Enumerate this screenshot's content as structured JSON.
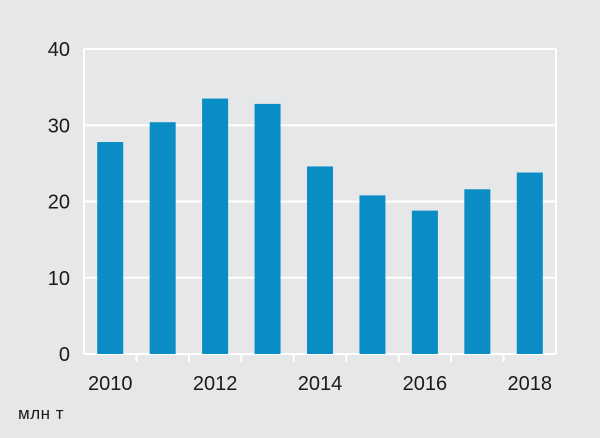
{
  "chart_data": {
    "type": "bar",
    "categories": [
      "2010",
      "2011",
      "2012",
      "2013",
      "2014",
      "2015",
      "2016",
      "2017",
      "2018"
    ],
    "values": [
      27.8,
      30.4,
      33.5,
      32.8,
      24.6,
      20.8,
      18.8,
      21.6,
      23.8
    ],
    "x_tick_labels": [
      "2010",
      "2012",
      "2014",
      "2016",
      "2018"
    ],
    "y_ticks": [
      0,
      10,
      20,
      30,
      40
    ],
    "ylim": [
      0,
      40
    ],
    "unit_label": "млн т",
    "grid": true,
    "bar_color": "#0a8dc4",
    "background_color": "#e6e7e8",
    "grid_color": "#ffffff"
  }
}
